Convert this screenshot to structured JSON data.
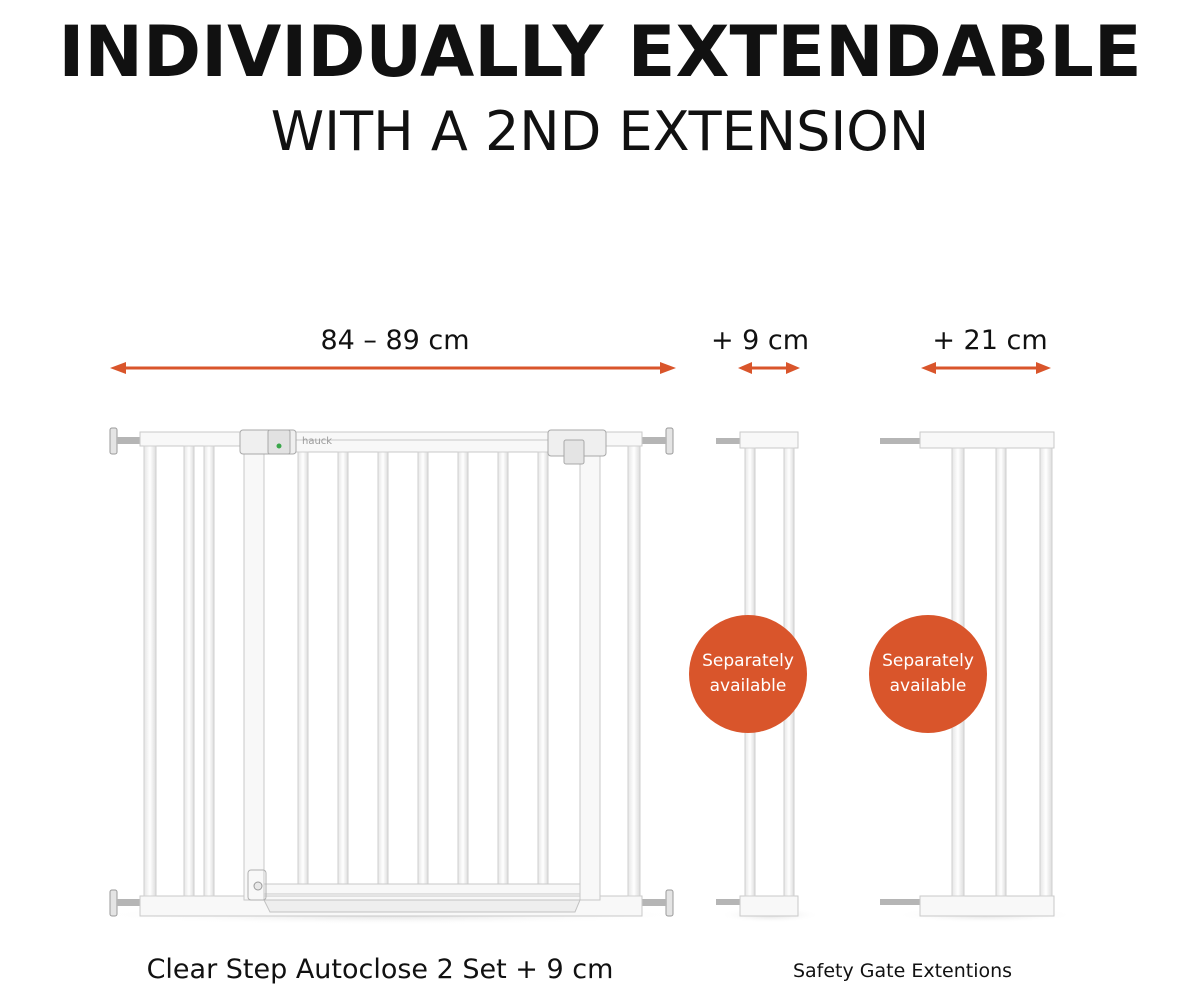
{
  "heading": {
    "title": "INDIVIDUALLY EXTENDABLE",
    "subtitle": "WITH A 2ND EXTENSION"
  },
  "dimensions": {
    "main_width": "84 – 89 cm",
    "extension_small": "+ 9 cm",
    "extension_large": "+ 21 cm"
  },
  "badges": [
    {
      "line1": "Separately",
      "line2": "available"
    },
    {
      "line1": "Separately",
      "line2": "available"
    }
  ],
  "captions": {
    "main": "Clear Step Autoclose 2 Set + 9 cm",
    "extensions": "Safety Gate Extentions"
  },
  "brand": "hauck",
  "colors": {
    "accent": "#d9552b",
    "text": "#111111",
    "gate": "#f7f7f7",
    "gate_outline": "#c9c9c9"
  }
}
